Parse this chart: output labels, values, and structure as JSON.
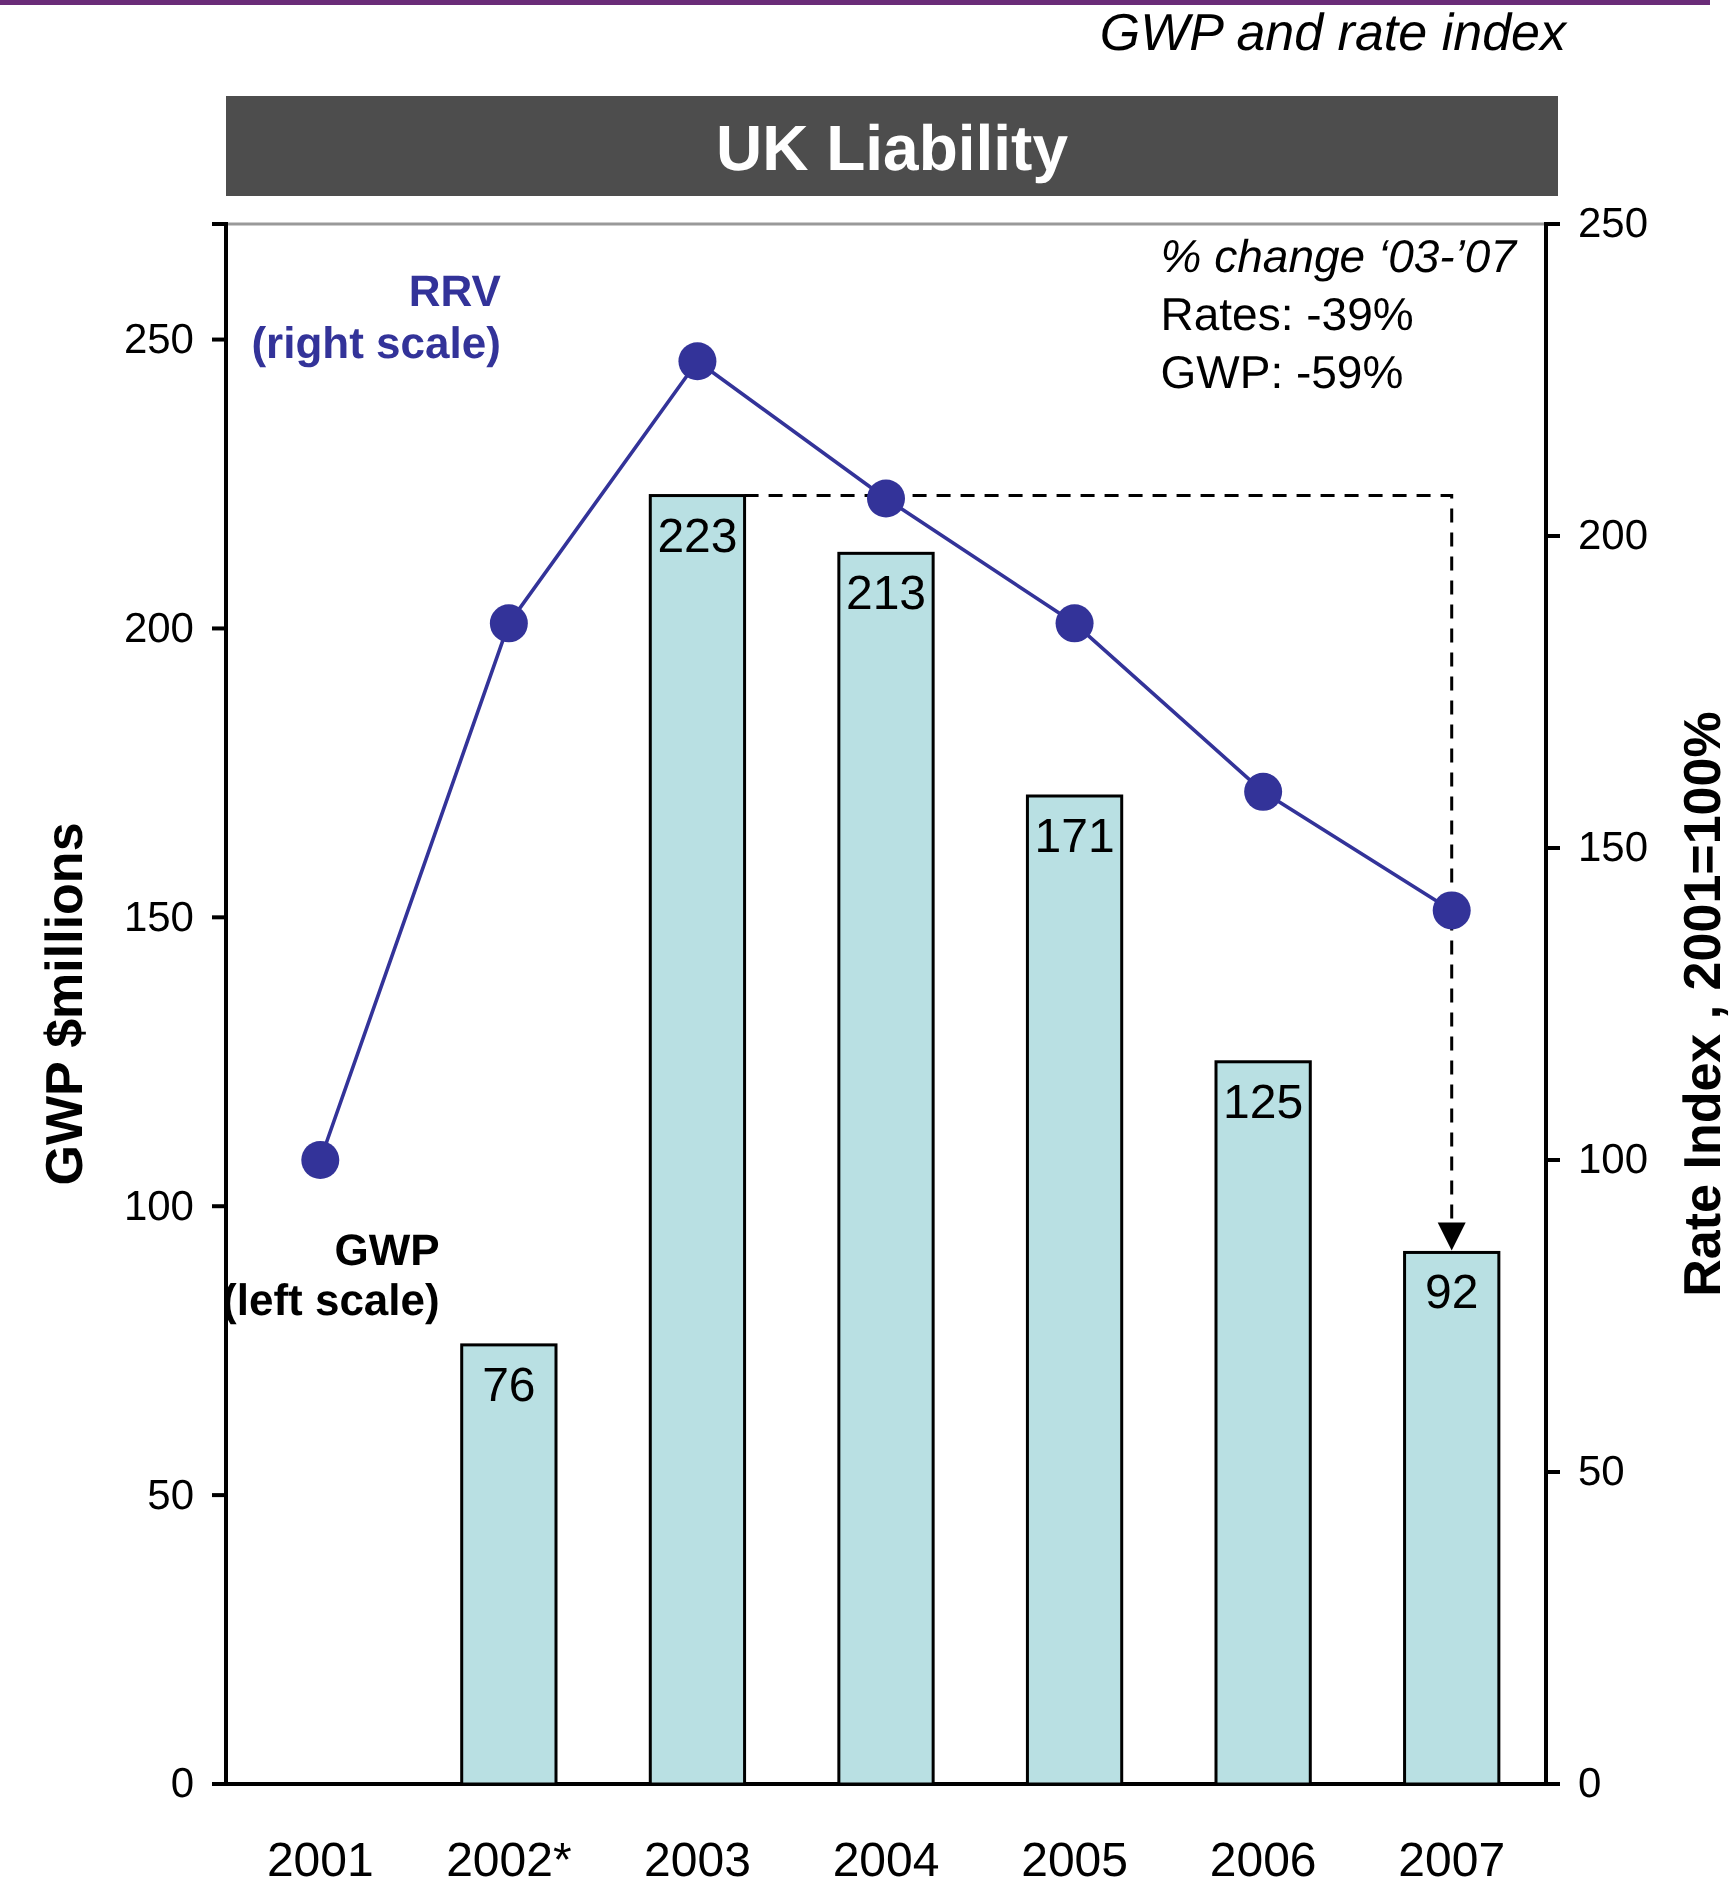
{
  "chart_data": {
    "type": "bar",
    "title": "UK Liability",
    "subtitle": "GWP and rate index",
    "ylabel": "GWP $millions",
    "y2label": "Rate Index , 2001=100%",
    "categories": [
      "2001",
      "2002*",
      "2003",
      "2004",
      "2005",
      "2006",
      "2007"
    ],
    "series": [
      {
        "name": "GWP (left scale)",
        "color": "#b9e0e3",
        "values": [
          null,
          76,
          223,
          213,
          171,
          125,
          92
        ],
        "value_labels": [
          null,
          "76",
          "223",
          "213",
          "171",
          "125",
          "92"
        ]
      },
      {
        "name": "RRV (right scale)",
        "type": "line",
        "axis": "y2",
        "color": "#333399",
        "values": [
          100,
          186,
          228,
          206,
          186,
          159,
          140
        ]
      }
    ],
    "ylim": [
      0,
      270
    ],
    "yticks": [
      0,
      50,
      100,
      150,
      200,
      250
    ],
    "y2lim": [
      0,
      250
    ],
    "y2ticks": [
      0,
      50,
      100,
      150,
      200,
      250
    ],
    "marker": "circle",
    "annotations": [
      "% change ‘03-’07",
      "Rates: -39%",
      "GWP: -59%"
    ]
  }
}
